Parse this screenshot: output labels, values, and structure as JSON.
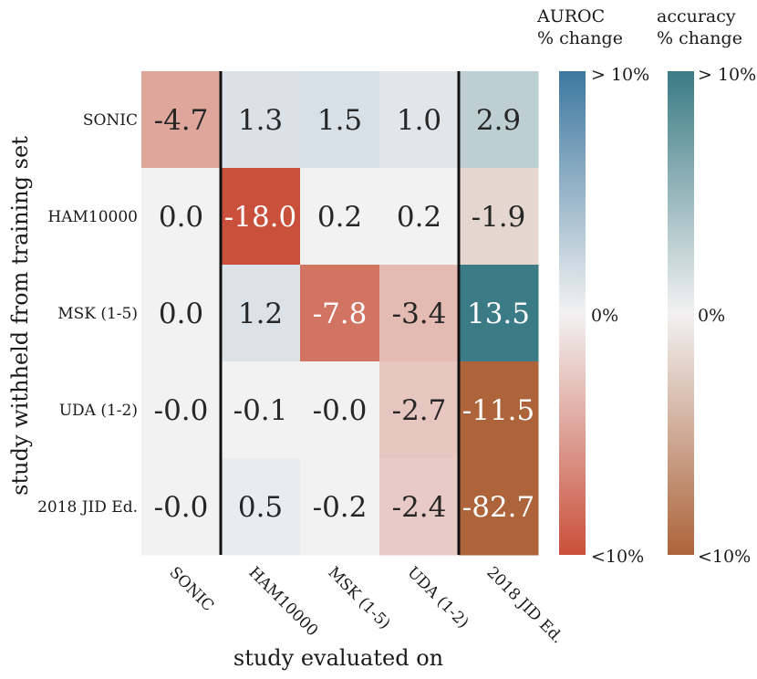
{
  "chart_data": {
    "type": "heatmap",
    "xlabel": "study evaluated on",
    "ylabel": "study withheld from training set",
    "x_categories": [
      "SONIC",
      "HAM10000",
      "MSK (1-5)",
      "UDA (1-2)",
      "2018 JID Ed."
    ],
    "y_categories": [
      "SONIC",
      "HAM10000",
      "MSK (1-5)",
      "UDA (1-2)",
      "2018 JID Ed."
    ],
    "values": [
      [
        -4.7,
        1.3,
        1.5,
        1.0,
        2.9
      ],
      [
        0.0,
        -18.0,
        0.2,
        0.2,
        -1.9
      ],
      [
        0.0,
        1.2,
        -7.8,
        -3.4,
        13.5
      ],
      [
        -0.0,
        -0.1,
        -0.0,
        -2.7,
        -11.5
      ],
      [
        -0.0,
        0.5,
        -0.2,
        -2.4,
        -82.7
      ]
    ],
    "value_labels": [
      [
        "-4.7",
        "1.3",
        "1.5",
        "1.0",
        "2.9"
      ],
      [
        "0.0",
        "-18.0",
        "0.2",
        "0.2",
        "-1.9"
      ],
      [
        "0.0",
        "1.2",
        "-7.8",
        "-3.4",
        "13.5"
      ],
      [
        "-0.0",
        "-0.1",
        "-0.0",
        "-2.7",
        "-11.5"
      ],
      [
        "-0.0",
        "0.5",
        "-0.2",
        "-2.4",
        "-82.7"
      ]
    ],
    "metric_columns": {
      "auroc": [
        0,
        1,
        2,
        3
      ],
      "accuracy": [
        4
      ]
    },
    "separators_after_columns": [
      0,
      3
    ],
    "value_range": [
      -10,
      10
    ],
    "colorbars": [
      {
        "name": "auroc",
        "title_line1": "AUROC",
        "title_line2": "% change",
        "tick_high": "> 10%",
        "tick_mid": "0%",
        "tick_low": "<10%",
        "color_high": "#3d78a0",
        "color_mid": "#f2f2f2",
        "color_low": "#c9503a"
      },
      {
        "name": "accuracy",
        "title_line1": "accuracy",
        "title_line2": "% change",
        "tick_high": "> 10%",
        "tick_mid": "0%",
        "tick_low": "<10%",
        "color_high": "#3a7b85",
        "color_mid": "#f2f2f2",
        "color_low": "#ad643a"
      }
    ]
  }
}
